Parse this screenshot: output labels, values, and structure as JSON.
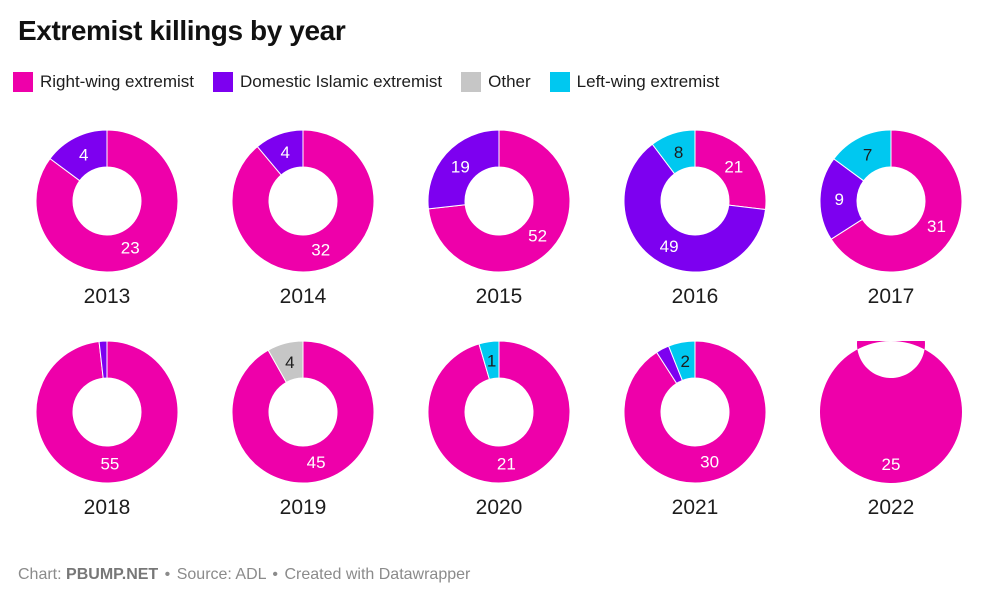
{
  "header": {
    "title": "Extremist killings by year"
  },
  "footer": {
    "chart_label": "Chart:",
    "chart_credit": "PBUMP.NET",
    "separator": "•",
    "source_label": "Source:",
    "source": "ADL",
    "credit": "Created with Datawrapper"
  },
  "chart_data": {
    "type": "pie",
    "subtype": "small-multiple-donuts",
    "title": "Extremist killings by year",
    "legend_position": "top",
    "series": [
      {
        "name": "Right-wing extremist",
        "color": "#ee00aa",
        "label_color": "#ffffff"
      },
      {
        "name": "Domestic Islamic extremist",
        "color": "#7d00f0",
        "label_color": "#ffffff"
      },
      {
        "name": "Other",
        "color": "#c6c6c6",
        "label_color": "#1d1d1d"
      },
      {
        "name": "Left-wing extremist",
        "color": "#00c8f0",
        "label_color": "#1d1d1d"
      }
    ],
    "donuts": [
      {
        "year": "2013",
        "slices": [
          {
            "series": "Right-wing extremist",
            "value": 23,
            "label": "23"
          },
          {
            "series": "Domestic Islamic extremist",
            "value": 4,
            "label": "4"
          }
        ]
      },
      {
        "year": "2014",
        "slices": [
          {
            "series": "Right-wing extremist",
            "value": 32,
            "label": "32"
          },
          {
            "series": "Domestic Islamic extremist",
            "value": 4,
            "label": "4"
          }
        ]
      },
      {
        "year": "2015",
        "slices": [
          {
            "series": "Right-wing extremist",
            "value": 52,
            "label": "52"
          },
          {
            "series": "Domestic Islamic extremist",
            "value": 19,
            "label": "19"
          }
        ]
      },
      {
        "year": "2016",
        "slices": [
          {
            "series": "Right-wing extremist",
            "value": 21,
            "label": "21"
          },
          {
            "series": "Domestic Islamic extremist",
            "value": 49,
            "label": "49"
          },
          {
            "series": "Left-wing extremist",
            "value": 8,
            "label": "8"
          }
        ]
      },
      {
        "year": "2017",
        "slices": [
          {
            "series": "Right-wing extremist",
            "value": 31,
            "label": "31"
          },
          {
            "series": "Domestic Islamic extremist",
            "value": 9,
            "label": "9"
          },
          {
            "series": "Left-wing extremist",
            "value": 7,
            "label": "7"
          }
        ]
      },
      {
        "year": "2018",
        "slices": [
          {
            "series": "Right-wing extremist",
            "value": 55,
            "label": "55"
          },
          {
            "series": "Domestic Islamic extremist",
            "value": 1,
            "label": null
          }
        ]
      },
      {
        "year": "2019",
        "slices": [
          {
            "series": "Right-wing extremist",
            "value": 45,
            "label": "45"
          },
          {
            "series": "Other",
            "value": 4,
            "label": "4"
          }
        ]
      },
      {
        "year": "2020",
        "slices": [
          {
            "series": "Right-wing extremist",
            "value": 21,
            "label": "21"
          },
          {
            "series": "Left-wing extremist",
            "value": 1,
            "label": "1"
          }
        ]
      },
      {
        "year": "2021",
        "slices": [
          {
            "series": "Right-wing extremist",
            "value": 30,
            "label": "30"
          },
          {
            "series": "Domestic Islamic extremist",
            "value": 1,
            "label": null
          },
          {
            "series": "Left-wing extremist",
            "value": 2,
            "label": "2"
          }
        ]
      },
      {
        "year": "2022",
        "slices": [
          {
            "series": "Right-wing extremist",
            "value": 25,
            "label": "25"
          }
        ]
      }
    ],
    "geometry": {
      "outer_radius": 71,
      "inner_radius": 34,
      "label_radius_ratio": 0.73,
      "start_angle": "top",
      "direction": "clockwise"
    }
  }
}
